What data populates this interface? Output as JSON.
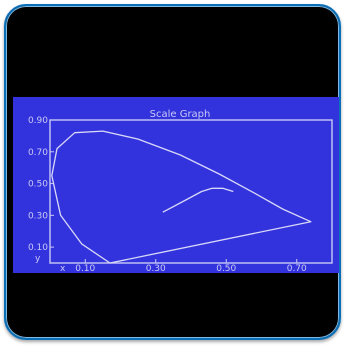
{
  "device": {
    "screen_title": "Scale Graph",
    "accent_color": "#0a6fb8",
    "screen_color": "#3333dd",
    "line_color": "#d8d8f8"
  },
  "chart_data": {
    "type": "line",
    "title": "Scale Graph",
    "xlabel": "x",
    "ylabel": "y",
    "xlim": [
      0.0,
      0.8
    ],
    "ylim": [
      0.0,
      0.9
    ],
    "x_ticks": [
      "0.10",
      "0.30",
      "0.50",
      "0.70"
    ],
    "y_ticks": [
      "0.90",
      "0.70",
      "0.50",
      "0.30",
      "0.10"
    ],
    "grid": false,
    "series": [
      {
        "x": [
          0.17,
          0.09,
          0.03,
          0.005,
          0.02,
          0.07,
          0.15,
          0.25,
          0.37,
          0.48,
          0.58,
          0.66,
          0.74,
          0.17
        ],
        "y": [
          0.0,
          0.12,
          0.3,
          0.55,
          0.72,
          0.82,
          0.83,
          0.78,
          0.68,
          0.56,
          0.44,
          0.34,
          0.26,
          0.0
        ]
      },
      {
        "x": [
          0.32,
          0.38,
          0.43,
          0.46,
          0.49,
          0.52
        ],
        "y": [
          0.32,
          0.39,
          0.45,
          0.47,
          0.47,
          0.45
        ]
      }
    ]
  }
}
